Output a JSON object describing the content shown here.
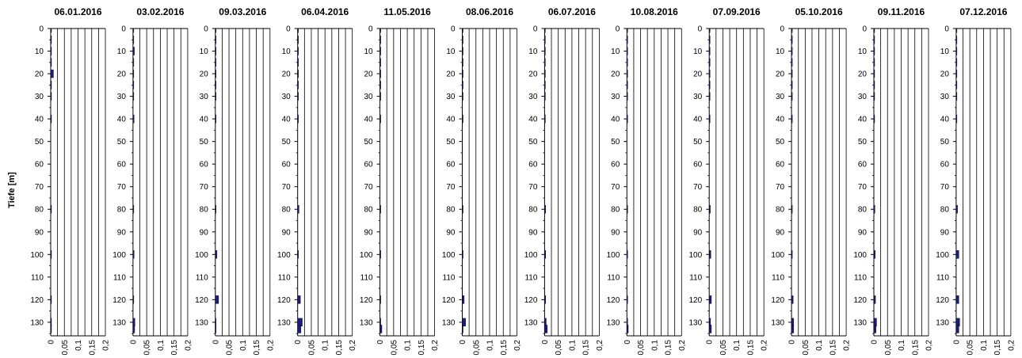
{
  "chart_data": {
    "type": "bar",
    "orientation": "horizontal",
    "ylabel": "Tiefe [m]",
    "y_ticks": [
      "0",
      "10",
      "20",
      "30",
      "40",
      "50",
      "60",
      "70",
      "80",
      "90",
      "100",
      "110",
      "120",
      "130"
    ],
    "x_ticks": [
      "0",
      "0,05",
      "0,1",
      "0,15",
      "0,2"
    ],
    "xlim": [
      0,
      0.2
    ],
    "ylim": [
      0,
      136
    ],
    "bar_color": "#1c1c7c",
    "panels": [
      {
        "title": "06.01.2016",
        "depths": [
          0,
          5,
          10,
          15,
          20,
          25,
          30,
          40,
          80,
          100,
          120,
          130,
          133
        ],
        "values": [
          0.002,
          0.002,
          0.002,
          0.002,
          0.01,
          0.002,
          0.002,
          0.002,
          0.002,
          0.002,
          0.002,
          0.002,
          0.002
        ]
      },
      {
        "title": "03.02.2016",
        "depths": [
          0,
          5,
          10,
          15,
          20,
          25,
          30,
          40,
          80,
          100,
          120,
          130,
          133
        ],
        "values": [
          0.002,
          0.002,
          0.005,
          0.002,
          0.002,
          0.002,
          0.002,
          0.004,
          0.002,
          0.004,
          0.002,
          0.007,
          0.006
        ]
      },
      {
        "title": "09.03.2016",
        "depths": [
          0,
          5,
          10,
          15,
          20,
          25,
          30,
          40,
          80,
          100,
          120,
          130,
          133
        ],
        "values": [
          0.002,
          0.002,
          0.002,
          0.002,
          0.002,
          0.002,
          0.002,
          0.002,
          0.002,
          0.006,
          0.012,
          0.002,
          0.002
        ]
      },
      {
        "title": "06.04.2016",
        "depths": [
          0,
          5,
          10,
          15,
          20,
          25,
          30,
          40,
          80,
          100,
          120,
          130,
          133
        ],
        "values": [
          0.002,
          0.002,
          0.002,
          0.002,
          0.002,
          0.002,
          0.002,
          0.002,
          0.005,
          0.002,
          0.01,
          0.017,
          0.012
        ]
      },
      {
        "title": "11.05.2016",
        "depths": [
          0,
          5,
          10,
          15,
          20,
          25,
          30,
          40,
          80,
          100,
          120,
          130,
          133
        ],
        "values": [
          0.002,
          0.002,
          0.002,
          0.002,
          0.002,
          0.002,
          0.002,
          0.002,
          0.002,
          0.002,
          0.002,
          0.002,
          0.007
        ]
      },
      {
        "title": "08.06.2016",
        "depths": [
          0,
          5,
          10,
          15,
          20,
          25,
          30,
          40,
          80,
          100,
          120,
          130,
          133
        ],
        "values": [
          0.002,
          0.002,
          0.002,
          0.002,
          0.002,
          0.002,
          0.002,
          0.002,
          0.002,
          0.002,
          0.007,
          0.012,
          0.002
        ]
      },
      {
        "title": "06.07.2016",
        "depths": [
          0,
          5,
          10,
          15,
          20,
          25,
          30,
          40,
          80,
          100,
          120,
          130,
          133
        ],
        "values": [
          0.002,
          0.002,
          0.002,
          0.002,
          0.002,
          0.002,
          0.002,
          0.002,
          0.004,
          0.004,
          0.004,
          0.006,
          0.01
        ]
      },
      {
        "title": "10.08.2016",
        "depths": [
          0,
          5,
          10,
          15,
          20,
          25,
          30,
          40,
          80,
          100,
          120,
          130,
          133
        ],
        "values": [
          0.002,
          0.002,
          0.002,
          0.002,
          0.002,
          0.002,
          0.002,
          0.002,
          0.002,
          0.002,
          0.002,
          0.002,
          0.005
        ]
      },
      {
        "title": "07.09.2016",
        "depths": [
          0,
          5,
          10,
          15,
          20,
          25,
          30,
          40,
          80,
          100,
          120,
          130,
          133
        ],
        "values": [
          0.002,
          0.002,
          0.002,
          0.002,
          0.002,
          0.002,
          0.002,
          0.002,
          0.004,
          0.006,
          0.008,
          0.005,
          0.008
        ]
      },
      {
        "title": "05.10.2016",
        "depths": [
          0,
          5,
          10,
          15,
          20,
          25,
          30,
          40,
          80,
          100,
          120,
          130,
          133
        ],
        "values": [
          0.002,
          0.002,
          0.002,
          0.002,
          0.002,
          0.002,
          0.002,
          0.002,
          0.002,
          0.002,
          0.006,
          0.008,
          0.008
        ]
      },
      {
        "title": "09.11.2016",
        "depths": [
          0,
          5,
          10,
          15,
          20,
          25,
          30,
          40,
          80,
          100,
          120,
          130,
          133
        ],
        "values": [
          0.002,
          0.002,
          0.002,
          0.002,
          0.002,
          0.002,
          0.002,
          0.002,
          0.004,
          0.005,
          0.006,
          0.01,
          0.008
        ]
      },
      {
        "title": "07.12.2016",
        "depths": [
          0,
          5,
          10,
          15,
          20,
          25,
          30,
          40,
          80,
          100,
          120,
          130,
          133
        ],
        "values": [
          0.002,
          0.002,
          0.002,
          0.002,
          0.002,
          0.002,
          0.002,
          0.002,
          0.005,
          0.01,
          0.01,
          0.013,
          0.01
        ]
      }
    ]
  }
}
